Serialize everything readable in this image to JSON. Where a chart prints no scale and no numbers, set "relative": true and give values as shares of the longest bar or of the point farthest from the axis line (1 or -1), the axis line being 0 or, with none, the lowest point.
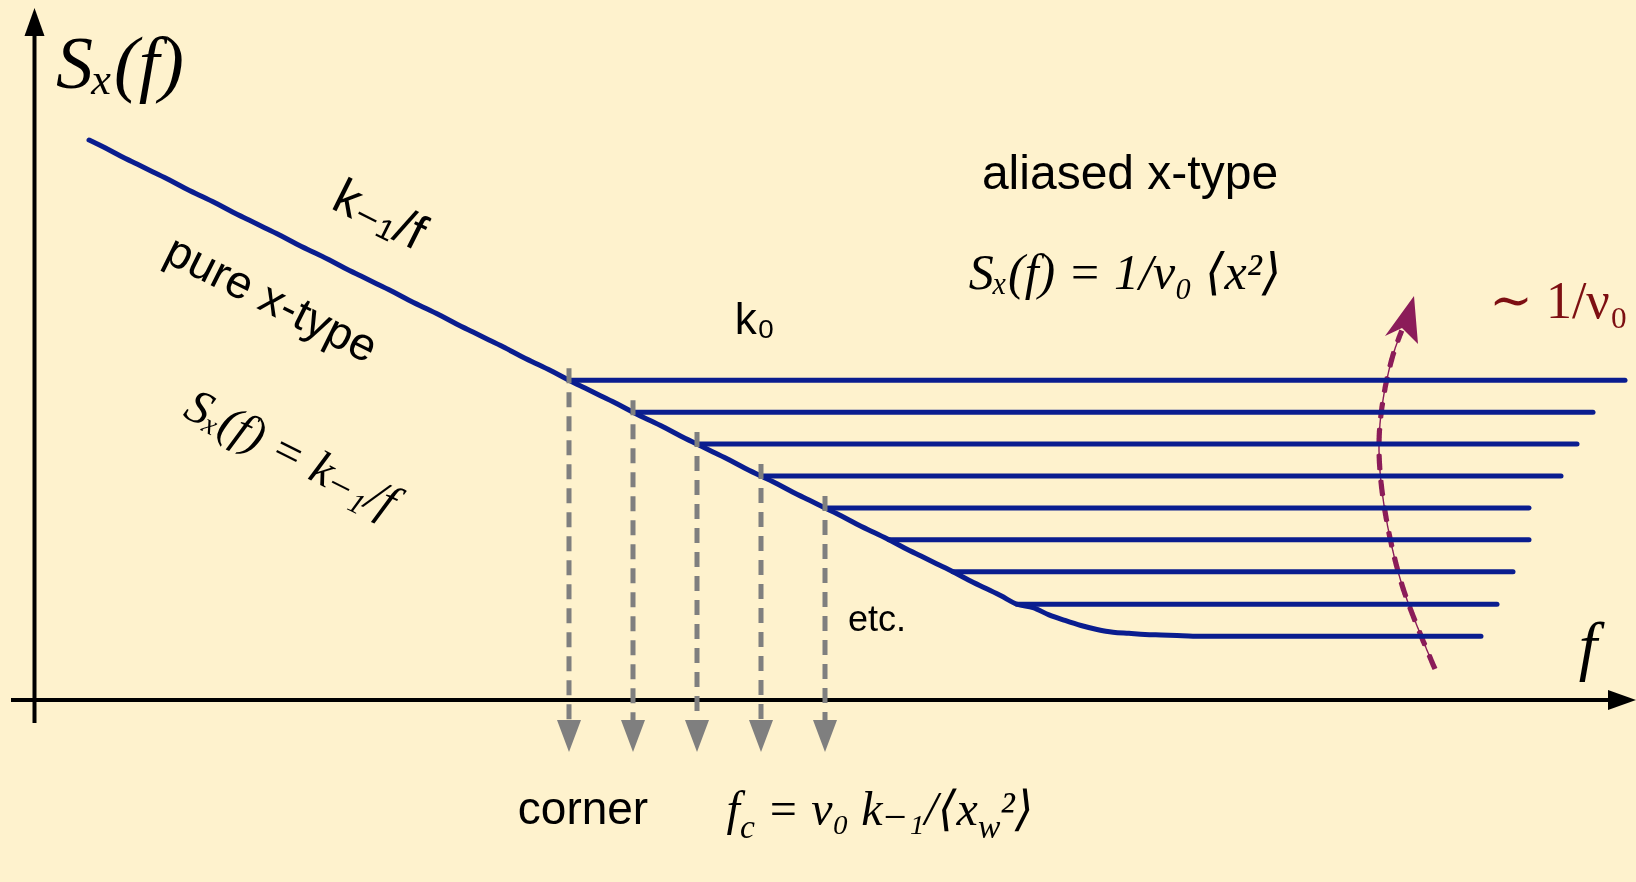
{
  "chart_data": {
    "type": "line",
    "relative": true,
    "xlabel": "f",
    "ylabel": "Sₓ(f)",
    "categories": [
      null,
      null,
      null,
      null,
      null,
      null,
      null,
      null,
      null,
      null,
      null,
      null,
      null,
      null,
      null,
      null,
      null,
      null,
      null,
      null,
      null,
      null,
      null,
      null,
      null,
      null,
      null,
      null,
      null,
      null,
      null,
      null,
      null,
      null,
      null,
      null,
      null,
      null,
      null,
      null,
      null,
      null,
      null,
      null,
      null,
      null,
      null,
      null,
      null,
      null,
      null,
      null,
      null,
      null,
      null,
      null,
      null,
      null,
      null,
      null,
      null,
      null,
      null,
      null,
      null,
      null,
      null,
      null,
      null,
      null,
      null,
      null,
      null,
      null,
      null,
      null,
      null,
      null,
      null,
      null,
      null,
      null,
      null,
      null,
      null,
      null,
      null,
      null,
      null,
      null,
      null,
      null,
      null,
      null,
      null,
      null,
      null
    ],
    "series": [
      {
        "color": "#0a1d8f",
        "values": [
          1,
          0.986,
          0.971,
          0.957,
          0.943,
          0.929,
          0.914,
          0.9,
          0.886,
          0.871,
          0.857,
          0.843,
          0.829,
          0.814,
          0.8,
          0.786,
          0.771,
          0.757,
          0.743,
          0.729,
          0.714,
          0.7,
          0.686,
          0.671,
          0.657,
          0.643,
          0.629,
          0.614,
          0.6,
          0.586,
          0.571,
          0.557,
          0.543,
          0.529,
          0.514,
          0.5,
          0.486,
          0.471,
          0.457,
          0.443,
          0.429,
          0.414,
          0.4,
          0.386,
          0.371,
          0.357,
          0.343,
          0.329,
          0.314,
          0.3,
          0.286,
          0.271,
          0.257,
          0.243,
          0.229,
          0.214,
          0.2,
          0.186,
          0.171,
          0.165,
          0.152,
          0.142,
          0.133,
          0.126,
          0.121,
          0.119,
          0.117,
          0.116,
          0.115,
          0.114,
          0.114,
          0.114,
          0.114,
          0.114,
          0.114,
          0.114,
          0.114,
          0.114,
          0.114,
          0.114,
          0.114,
          0.114,
          0.114,
          0.114,
          0.114,
          0.114,
          0.114,
          0.114,
          null,
          null,
          null,
          null,
          null,
          null,
          null,
          null,
          null
        ]
      },
      {
        "color": "#0a1d8f",
        "values": [
          null,
          null,
          null,
          null,
          null,
          null,
          null,
          null,
          null,
          null,
          null,
          null,
          null,
          null,
          null,
          null,
          null,
          null,
          null,
          null,
          null,
          null,
          null,
          null,
          null,
          null,
          null,
          null,
          null,
          null,
          0.571,
          0.571,
          0.571,
          0.571,
          0.571,
          0.571,
          0.571,
          0.571,
          0.571,
          0.571,
          0.571,
          0.571,
          0.571,
          0.571,
          0.571,
          0.571,
          0.571,
          0.571,
          0.571,
          0.571,
          0.571,
          0.571,
          0.571,
          0.571,
          0.571,
          0.571,
          0.571,
          0.571,
          0.571,
          0.571,
          0.571,
          0.571,
          0.571,
          0.571,
          0.571,
          0.571,
          0.571,
          0.571,
          0.571,
          0.571,
          0.571,
          0.571,
          0.571,
          0.571,
          0.571,
          0.571,
          0.571,
          0.571,
          0.571,
          0.571,
          0.571,
          0.571,
          0.571,
          0.571,
          0.571,
          0.571,
          0.571,
          0.571,
          0.571,
          0.571,
          0.571,
          0.571,
          0.571,
          0.571,
          0.571,
          0.571,
          0.571
        ]
      },
      {
        "color": "#0a1d8f",
        "values": [
          null,
          null,
          null,
          null,
          null,
          null,
          null,
          null,
          null,
          null,
          null,
          null,
          null,
          null,
          null,
          null,
          null,
          null,
          null,
          null,
          null,
          null,
          null,
          null,
          null,
          null,
          null,
          null,
          null,
          null,
          null,
          null,
          null,
          null,
          0.514,
          0.514,
          0.514,
          0.514,
          0.514,
          0.514,
          0.514,
          0.514,
          0.514,
          0.514,
          0.514,
          0.514,
          0.514,
          0.514,
          0.514,
          0.514,
          0.514,
          0.514,
          0.514,
          0.514,
          0.514,
          0.514,
          0.514,
          0.514,
          0.514,
          0.514,
          0.514,
          0.514,
          0.514,
          0.514,
          0.514,
          0.514,
          0.514,
          0.514,
          0.514,
          0.514,
          0.514,
          0.514,
          0.514,
          0.514,
          0.514,
          0.514,
          0.514,
          0.514,
          0.514,
          0.514,
          0.514,
          0.514,
          0.514,
          0.514,
          0.514,
          0.514,
          0.514,
          0.514,
          0.514,
          0.514,
          0.514,
          0.514,
          0.514,
          0.514,
          0.514,
          null,
          null
        ]
      },
      {
        "color": "#0a1d8f",
        "values": [
          null,
          null,
          null,
          null,
          null,
          null,
          null,
          null,
          null,
          null,
          null,
          null,
          null,
          null,
          null,
          null,
          null,
          null,
          null,
          null,
          null,
          null,
          null,
          null,
          null,
          null,
          null,
          null,
          null,
          null,
          null,
          null,
          null,
          null,
          null,
          null,
          null,
          null,
          0.457,
          0.457,
          0.457,
          0.457,
          0.457,
          0.457,
          0.457,
          0.457,
          0.457,
          0.457,
          0.457,
          0.457,
          0.457,
          0.457,
          0.457,
          0.457,
          0.457,
          0.457,
          0.457,
          0.457,
          0.457,
          0.457,
          0.457,
          0.457,
          0.457,
          0.457,
          0.457,
          0.457,
          0.457,
          0.457,
          0.457,
          0.457,
          0.457,
          0.457,
          0.457,
          0.457,
          0.457,
          0.457,
          0.457,
          0.457,
          0.457,
          0.457,
          0.457,
          0.457,
          0.457,
          0.457,
          0.457,
          0.457,
          0.457,
          0.457,
          0.457,
          0.457,
          0.457,
          0.457,
          0.457,
          0.457,
          null,
          null,
          null
        ]
      },
      {
        "color": "#0a1d8f",
        "values": [
          null,
          null,
          null,
          null,
          null,
          null,
          null,
          null,
          null,
          null,
          null,
          null,
          null,
          null,
          null,
          null,
          null,
          null,
          null,
          null,
          null,
          null,
          null,
          null,
          null,
          null,
          null,
          null,
          null,
          null,
          null,
          null,
          null,
          null,
          null,
          null,
          null,
          null,
          null,
          null,
          null,
          null,
          0.4,
          0.4,
          0.4,
          0.4,
          0.4,
          0.4,
          0.4,
          0.4,
          0.4,
          0.4,
          0.4,
          0.4,
          0.4,
          0.4,
          0.4,
          0.4,
          0.4,
          0.4,
          0.4,
          0.4,
          0.4,
          0.4,
          0.4,
          0.4,
          0.4,
          0.4,
          0.4,
          0.4,
          0.4,
          0.4,
          0.4,
          0.4,
          0.4,
          0.4,
          0.4,
          0.4,
          0.4,
          0.4,
          0.4,
          0.4,
          0.4,
          0.4,
          0.4,
          0.4,
          0.4,
          0.4,
          0.4,
          0.4,
          0.4,
          0.4,
          0.4,
          null,
          null,
          null,
          null
        ]
      },
      {
        "color": "#0a1d8f",
        "values": [
          null,
          null,
          null,
          null,
          null,
          null,
          null,
          null,
          null,
          null,
          null,
          null,
          null,
          null,
          null,
          null,
          null,
          null,
          null,
          null,
          null,
          null,
          null,
          null,
          null,
          null,
          null,
          null,
          null,
          null,
          null,
          null,
          null,
          null,
          null,
          null,
          null,
          null,
          null,
          null,
          null,
          null,
          null,
          null,
          null,
          null,
          0.343,
          0.343,
          0.343,
          0.343,
          0.343,
          0.343,
          0.343,
          0.343,
          0.343,
          0.343,
          0.343,
          0.343,
          0.343,
          0.343,
          0.343,
          0.343,
          0.343,
          0.343,
          0.343,
          0.343,
          0.343,
          0.343,
          0.343,
          0.343,
          0.343,
          0.343,
          0.343,
          0.343,
          0.343,
          0.343,
          0.343,
          0.343,
          0.343,
          0.343,
          0.343,
          0.343,
          0.343,
          0.343,
          0.343,
          0.343,
          0.343,
          0.343,
          0.343,
          0.343,
          0.343,
          null,
          null,
          null,
          null,
          null,
          null
        ]
      },
      {
        "color": "#0a1d8f",
        "values": [
          null,
          null,
          null,
          null,
          null,
          null,
          null,
          null,
          null,
          null,
          null,
          null,
          null,
          null,
          null,
          null,
          null,
          null,
          null,
          null,
          null,
          null,
          null,
          null,
          null,
          null,
          null,
          null,
          null,
          null,
          null,
          null,
          null,
          null,
          null,
          null,
          null,
          null,
          null,
          null,
          null,
          null,
          null,
          null,
          null,
          null,
          null,
          null,
          null,
          null,
          0.286,
          0.286,
          0.286,
          0.286,
          0.286,
          0.286,
          0.286,
          0.286,
          0.286,
          0.286,
          0.286,
          0.286,
          0.286,
          0.286,
          0.286,
          0.286,
          0.286,
          0.286,
          0.286,
          0.286,
          0.286,
          0.286,
          0.286,
          0.286,
          0.286,
          0.286,
          0.286,
          0.286,
          0.286,
          0.286,
          0.286,
          0.286,
          0.286,
          0.286,
          0.286,
          0.286,
          0.286,
          0.286,
          0.286,
          0.286,
          0.286,
          null,
          null,
          null,
          null,
          null,
          null
        ]
      },
      {
        "color": "#0a1d8f",
        "values": [
          null,
          null,
          null,
          null,
          null,
          null,
          null,
          null,
          null,
          null,
          null,
          null,
          null,
          null,
          null,
          null,
          null,
          null,
          null,
          null,
          null,
          null,
          null,
          null,
          null,
          null,
          null,
          null,
          null,
          null,
          null,
          null,
          null,
          null,
          null,
          null,
          null,
          null,
          null,
          null,
          null,
          null,
          null,
          null,
          null,
          null,
          null,
          null,
          null,
          null,
          null,
          null,
          null,
          null,
          0.229,
          0.229,
          0.229,
          0.229,
          0.229,
          0.229,
          0.229,
          0.229,
          0.229,
          0.229,
          0.229,
          0.229,
          0.229,
          0.229,
          0.229,
          0.229,
          0.229,
          0.229,
          0.229,
          0.229,
          0.229,
          0.229,
          0.229,
          0.229,
          0.229,
          0.229,
          0.229,
          0.229,
          0.229,
          0.229,
          0.229,
          0.229,
          0.229,
          0.229,
          0.229,
          0.229,
          null,
          null,
          null,
          null,
          null,
          null,
          null
        ]
      },
      {
        "color": "#0a1d8f",
        "values": [
          null,
          null,
          null,
          null,
          null,
          null,
          null,
          null,
          null,
          null,
          null,
          null,
          null,
          null,
          null,
          null,
          null,
          null,
          null,
          null,
          null,
          null,
          null,
          null,
          null,
          null,
          null,
          null,
          null,
          null,
          null,
          null,
          null,
          null,
          null,
          null,
          null,
          null,
          null,
          null,
          null,
          null,
          null,
          null,
          null,
          null,
          null,
          null,
          null,
          null,
          null,
          null,
          null,
          null,
          null,
          null,
          null,
          null,
          0.171,
          0.171,
          0.171,
          0.171,
          0.171,
          0.171,
          0.171,
          0.171,
          0.171,
          0.171,
          0.171,
          0.171,
          0.171,
          0.171,
          0.171,
          0.171,
          0.171,
          0.171,
          0.171,
          0.171,
          0.171,
          0.171,
          0.171,
          0.171,
          0.171,
          0.171,
          0.171,
          0.171,
          0.171,
          0.171,
          0.171,
          null,
          null,
          null,
          null,
          null,
          null,
          null,
          null
        ]
      }
    ],
    "annotations": [
      "k₋₁/f",
      "pure x-type",
      "Sₓ(f) = k₋₁/f",
      "k₀",
      "aliased x-type",
      "Sₓ(f) = 1/ν₀ ⟨x²⟩",
      "∼ 1/ν₀",
      "etc.",
      "corner",
      "f$_{c}$ = ν₀ k₋₁/⟨x$_{w}$²⟩"
    ]
  }
}
